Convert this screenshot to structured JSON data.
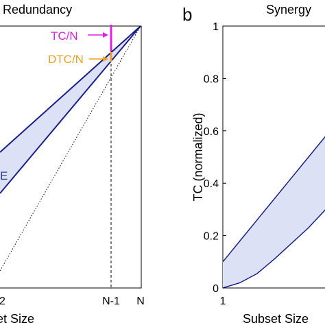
{
  "chart_data": [
    {
      "type": "area",
      "title": "Redundancy",
      "xlabel": "Subset Size",
      "x_ticks": [
        "2",
        "N-1",
        "N"
      ],
      "annotations": [
        {
          "text": "TC/N",
          "color": "#e020e0"
        },
        {
          "text": "DTC/N",
          "color": "#f0a020"
        },
        {
          "text": "E",
          "color": "#2a3f9a"
        }
      ],
      "colors": {
        "fill": "#dde1f6",
        "line": "#1a1f8c",
        "tc": "#e020e0",
        "dtc": "#f0a020"
      }
    },
    {
      "type": "area",
      "panel_label": "b",
      "title": "Synergy",
      "xlabel": "Subset Size",
      "ylabel": "TC (normalized)",
      "y_ticks": [
        "0",
        "0.2",
        "0.4",
        "0.6",
        "0.8",
        "1"
      ],
      "x_ticks": [
        "1"
      ],
      "ylim": [
        0,
        1
      ],
      "series": [
        {
          "x": [
            1,
            1.5,
            2,
            2.5,
            3,
            3.5,
            4
          ],
          "values": [
            0.1,
            0.18,
            0.26,
            0.34,
            0.42,
            0.5,
            0.58
          ]
        },
        {
          "x": [
            1,
            1.5,
            2,
            2.5,
            3,
            3.5,
            4
          ],
          "values": [
            0.0,
            0.02,
            0.055,
            0.11,
            0.17,
            0.23,
            0.3
          ]
        }
      ],
      "colors": {
        "fill": "#dde1f6",
        "line": "#1a1f8c"
      }
    }
  ]
}
